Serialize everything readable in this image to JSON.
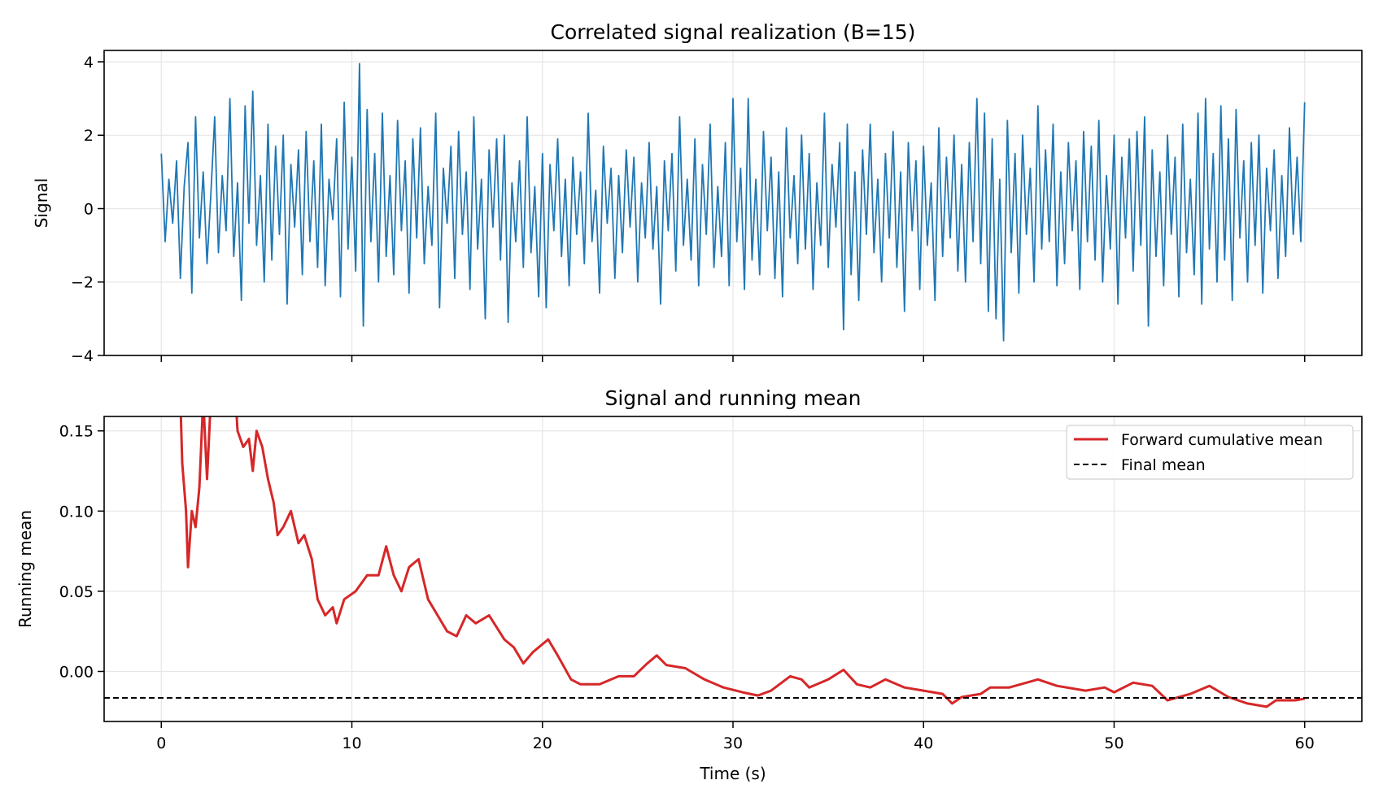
{
  "chart_data": [
    {
      "type": "line",
      "title": "Correlated signal realization (B=15)",
      "xlabel": "",
      "ylabel": "Signal",
      "xlim": [
        -3,
        63
      ],
      "ylim": [
        -4.0,
        4.31
      ],
      "grid": true,
      "xticks": [
        0,
        10,
        20,
        30,
        40,
        50,
        60
      ],
      "yticks": [
        -4,
        -2,
        0,
        2,
        4
      ],
      "ytick_labels": [
        "−4",
        "−2",
        "0",
        "2",
        "4"
      ],
      "series": [
        {
          "name": "Signal",
          "color": "#1f77b4",
          "x_start": 0,
          "x_step": 0.2,
          "values": [
            1.5,
            -0.9,
            0.8,
            -0.4,
            1.3,
            -1.9,
            0.6,
            1.8,
            -2.3,
            2.5,
            -0.8,
            1.0,
            -1.5,
            0.4,
            2.5,
            -1.2,
            0.9,
            -0.6,
            3.0,
            -1.3,
            0.7,
            -2.5,
            2.8,
            -0.4,
            3.2,
            -1.0,
            0.9,
            -2.0,
            2.3,
            -1.4,
            1.7,
            -0.7,
            2.0,
            -2.6,
            1.2,
            -0.5,
            1.6,
            -1.8,
            2.1,
            -0.9,
            1.3,
            -1.6,
            2.3,
            -2.1,
            0.8,
            -0.3,
            1.9,
            -2.4,
            2.9,
            -1.1,
            1.4,
            -1.7,
            3.95,
            -3.2,
            2.7,
            -0.9,
            1.5,
            -2.0,
            2.6,
            -1.3,
            0.9,
            -1.8,
            2.4,
            -0.6,
            1.3,
            -2.3,
            1.9,
            -0.8,
            2.2,
            -1.5,
            0.6,
            -1.0,
            2.6,
            -2.7,
            1.1,
            -0.4,
            1.7,
            -1.9,
            2.1,
            -0.7,
            1.0,
            -2.2,
            2.5,
            -1.1,
            0.8,
            -3.0,
            1.6,
            -0.5,
            1.9,
            -1.4,
            2.0,
            -3.1,
            0.7,
            -0.9,
            1.3,
            -1.6,
            2.5,
            -1.2,
            0.6,
            -2.4,
            1.5,
            -2.7,
            1.2,
            -0.6,
            1.9,
            -1.3,
            0.8,
            -2.1,
            1.4,
            -0.7,
            1.0,
            -1.5,
            2.6,
            -0.9,
            0.5,
            -2.3,
            1.7,
            -0.4,
            1.1,
            -1.9,
            0.9,
            -1.2,
            1.6,
            -0.5,
            1.4,
            -2.0,
            0.7,
            -0.8,
            1.8,
            -1.1,
            0.6,
            -2.6,
            1.3,
            -0.6,
            1.5,
            -1.7,
            2.5,
            -1.0,
            0.8,
            -1.4,
            1.9,
            -2.1,
            1.2,
            -0.7,
            2.3,
            -1.6,
            0.6,
            -1.3,
            1.8,
            -2.1,
            3.0,
            -0.9,
            1.1,
            -2.2,
            3.0,
            -1.4,
            0.8,
            -1.8,
            2.1,
            -0.6,
            1.4,
            -1.9,
            1.0,
            -2.4,
            2.2,
            -0.8,
            0.9,
            -1.5,
            2.0,
            -1.1,
            1.5,
            -2.2,
            0.7,
            -1.0,
            2.6,
            -1.6,
            1.2,
            -0.5,
            1.8,
            -3.3,
            2.3,
            -1.8,
            1.0,
            -2.5,
            1.6,
            -0.7,
            2.3,
            -1.2,
            0.8,
            -2.0,
            1.5,
            -0.8,
            2.1,
            -1.6,
            1.0,
            -2.8,
            1.8,
            -0.6,
            1.3,
            -2.2,
            1.7,
            -1.0,
            0.7,
            -2.5,
            2.2,
            -1.3,
            1.4,
            -0.8,
            2.0,
            -1.7,
            1.2,
            -2.0,
            1.8,
            -0.9,
            3.0,
            -1.5,
            2.6,
            -2.8,
            1.9,
            -3.0,
            0.8,
            -3.6,
            2.4,
            -1.2,
            1.5,
            -2.3,
            2.0,
            -0.7,
            1.1,
            -2.0,
            2.8,
            -1.1,
            1.6,
            -0.9,
            2.3,
            -2.1,
            1.0,
            -1.5,
            1.8,
            -0.6,
            1.3,
            -2.2,
            2.1,
            -0.9,
            1.7,
            -1.4,
            2.4,
            -2.0,
            0.9,
            -1.1,
            2.0,
            -2.6,
            1.4,
            -0.8,
            1.9,
            -1.7,
            2.1,
            -1.0,
            2.5,
            -3.2,
            1.6,
            -1.3,
            1.0,
            -2.1,
            2.0,
            -0.7,
            1.4,
            -2.4,
            2.3,
            -1.2,
            0.8,
            -1.8,
            2.6,
            -2.6,
            3.0,
            -1.1,
            1.5,
            -2.0,
            2.8,
            -1.4,
            1.9,
            -2.5,
            2.7,
            -0.8,
            1.3,
            -2.0,
            1.8,
            -1.0,
            2.0,
            -2.3,
            1.1,
            -0.6,
            1.6,
            -1.9,
            0.9,
            -1.3,
            2.2,
            -0.7,
            1.4,
            -0.9,
            2.9
          ]
        }
      ]
    },
    {
      "type": "line",
      "title": "Signal and running mean",
      "xlabel": "Time (s)",
      "ylabel": "Running mean",
      "xlim": [
        -3,
        63
      ],
      "ylim": [
        -0.0312,
        0.159
      ],
      "grid": true,
      "xticks": [
        0,
        10,
        20,
        30,
        40,
        50,
        60
      ],
      "xtick_labels": [
        "0",
        "10",
        "20",
        "30",
        "40",
        "50",
        "60"
      ],
      "yticks": [
        0.0,
        0.05,
        0.1,
        0.15
      ],
      "ytick_labels": [
        "0.00",
        "0.05",
        "0.10",
        "0.15"
      ],
      "legend_position": "top-right",
      "series": [
        {
          "name": "Forward cumulative mean",
          "color": "#d62728",
          "x": [
            1.0,
            1.1,
            1.3,
            1.4,
            1.6,
            1.8,
            2.0,
            2.2,
            2.4,
            2.6,
            3.0,
            3.9,
            4.0,
            4.3,
            4.6,
            4.8,
            5.0,
            5.3,
            5.6,
            5.9,
            6.1,
            6.4,
            6.8,
            7.2,
            7.5,
            7.9,
            8.2,
            8.6,
            9.0,
            9.2,
            9.6,
            10.2,
            10.8,
            11.4,
            11.8,
            12.2,
            12.6,
            13.0,
            13.5,
            14.0,
            14.5,
            15.0,
            15.5,
            16.0,
            16.5,
            17.2,
            18.0,
            18.5,
            19.0,
            19.5,
            20.3,
            20.8,
            21.5,
            22.0,
            23.0,
            24.0,
            24.8,
            25.5,
            26.0,
            26.5,
            27.5,
            28.5,
            29.5,
            30.5,
            31.3,
            32.0,
            33.0,
            33.6,
            34.0,
            35.0,
            35.8,
            36.5,
            37.2,
            38.0,
            39.0,
            40.0,
            41.0,
            41.5,
            42.0,
            43.0,
            43.5,
            44.5,
            46.0,
            47.0,
            48.5,
            49.5,
            50.0,
            51.0,
            52.0,
            52.8,
            54.0,
            55.0,
            56.0,
            57.0,
            58.0,
            58.5,
            59.5,
            60.0
          ],
          "values": [
            0.17,
            0.13,
            0.1,
            0.065,
            0.1,
            0.09,
            0.115,
            0.17,
            0.12,
            0.17,
            0.17,
            0.17,
            0.15,
            0.14,
            0.145,
            0.125,
            0.15,
            0.14,
            0.12,
            0.105,
            0.085,
            0.09,
            0.1,
            0.08,
            0.085,
            0.07,
            0.045,
            0.035,
            0.04,
            0.03,
            0.045,
            0.05,
            0.06,
            0.06,
            0.078,
            0.06,
            0.05,
            0.065,
            0.07,
            0.045,
            0.035,
            0.025,
            0.022,
            0.035,
            0.03,
            0.035,
            0.02,
            0.015,
            0.005,
            0.012,
            0.02,
            0.01,
            -0.005,
            -0.008,
            -0.008,
            -0.003,
            -0.003,
            0.005,
            0.01,
            0.004,
            0.002,
            -0.005,
            -0.01,
            -0.013,
            -0.015,
            -0.012,
            -0.003,
            -0.005,
            -0.01,
            -0.005,
            0.001,
            -0.008,
            -0.01,
            -0.005,
            -0.01,
            -0.012,
            -0.014,
            -0.02,
            -0.016,
            -0.014,
            -0.01,
            -0.01,
            -0.005,
            -0.009,
            -0.012,
            -0.01,
            -0.013,
            -0.007,
            -0.009,
            -0.018,
            -0.014,
            -0.009,
            -0.016,
            -0.02,
            -0.022,
            -0.018,
            -0.018,
            -0.017
          ]
        },
        {
          "name": "Final mean",
          "color": "#000000",
          "style": "dashed",
          "value": -0.0165
        }
      ]
    }
  ]
}
